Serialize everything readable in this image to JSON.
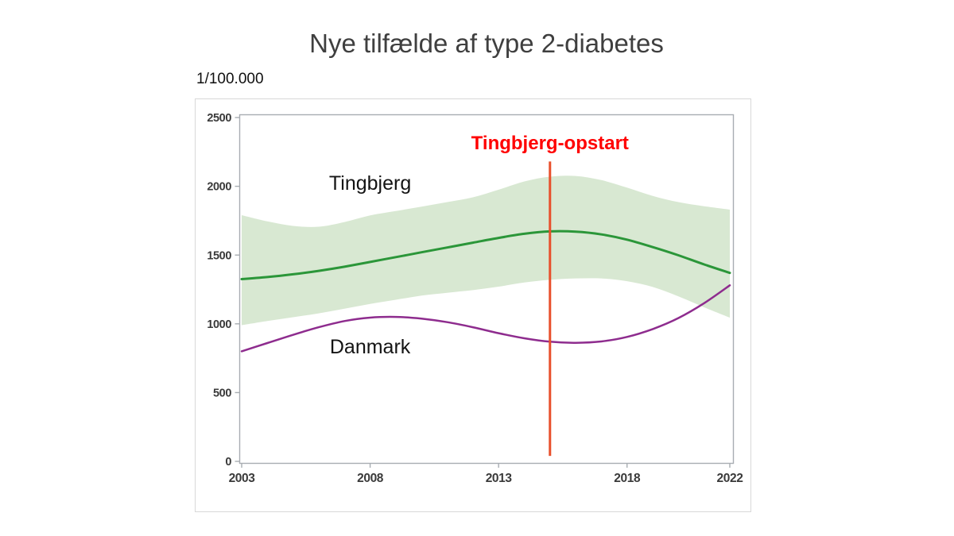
{
  "title": "Nye tilfælde af type 2-diabetes",
  "y_unit_label": "1/100.000",
  "chart_data": {
    "type": "line",
    "title": "Nye tilfælde af type 2-diabetes",
    "ylabel": "1/100.000",
    "xlabel": "",
    "xlim": [
      2003,
      2022
    ],
    "ylim": [
      0,
      2500
    ],
    "xticks": [
      2003,
      2008,
      2013,
      2018,
      2022
    ],
    "yticks": [
      0,
      500,
      1000,
      1500,
      2000,
      2500
    ],
    "grid": false,
    "legend_position": "inline-labels",
    "axis_color": "#a8adb2",
    "tick_label_color": "#3a3a3a",
    "x": [
      2003,
      2004,
      2005,
      2006,
      2007,
      2008,
      2009,
      2010,
      2011,
      2012,
      2013,
      2014,
      2015,
      2016,
      2017,
      2018,
      2019,
      2020,
      2021,
      2022
    ],
    "series": [
      {
        "name": "Tingbjerg",
        "color": "#2b9639",
        "line_width": 3,
        "values": [
          1325,
          1340,
          1360,
          1385,
          1415,
          1450,
          1485,
          1520,
          1555,
          1590,
          1625,
          1655,
          1672,
          1670,
          1650,
          1612,
          1558,
          1498,
          1432,
          1370
        ],
        "band": {
          "color": "#d8e8d2",
          "upper": [
            1790,
            1745,
            1712,
            1706,
            1740,
            1788,
            1820,
            1852,
            1885,
            1920,
            1975,
            2035,
            2070,
            2075,
            2045,
            1990,
            1930,
            1885,
            1855,
            1830
          ],
          "lower": [
            990,
            1020,
            1048,
            1076,
            1110,
            1145,
            1175,
            1205,
            1226,
            1245,
            1270,
            1300,
            1320,
            1330,
            1330,
            1310,
            1268,
            1200,
            1120,
            1045
          ]
        }
      },
      {
        "name": "Danmark",
        "color": "#8e2c8e",
        "line_width": 2.5,
        "values": [
          800,
          860,
          920,
          975,
          1020,
          1045,
          1050,
          1038,
          1012,
          975,
          932,
          895,
          870,
          862,
          872,
          905,
          962,
          1042,
          1150,
          1280
        ]
      }
    ],
    "series_labels": [
      {
        "text": "Tingbjerg",
        "x": 2008,
        "y": 2025
      },
      {
        "text": "Danmark",
        "x": 2008,
        "y": 835
      }
    ],
    "annotation": {
      "label": "Tingbjerg-opstart",
      "x": 2015,
      "line_top": 2180,
      "line_bottom": 40,
      "label_y": 2270,
      "line_color": "#e8502c",
      "label_color": "#ff0000"
    }
  }
}
